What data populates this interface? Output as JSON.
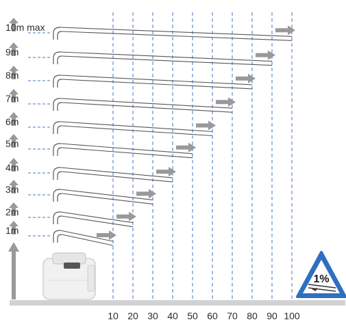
{
  "diagram": {
    "height_labels": [
      "1m",
      "2m",
      "3m",
      "4m",
      "5m",
      "6m",
      "7m",
      "8m",
      "9m",
      "10m max"
    ],
    "distance_ticks": [
      "10",
      "20",
      "30",
      "40",
      "50",
      "60",
      "70",
      "80",
      "90",
      "100"
    ],
    "slope_badge": "1%",
    "colors": {
      "arrow": "#999999",
      "pipe": "#555555",
      "guide": "#3f74c4",
      "ground": "#d2d2d2",
      "badge": "#2f6fc0"
    },
    "icons": {
      "pump": "macerator-pump-icon",
      "slope": "slope-warning-icon",
      "vertical_arrow": "vertical-lift-arrow-icon",
      "horizontal_arrow": "horizontal-flow-arrow-icon"
    }
  }
}
